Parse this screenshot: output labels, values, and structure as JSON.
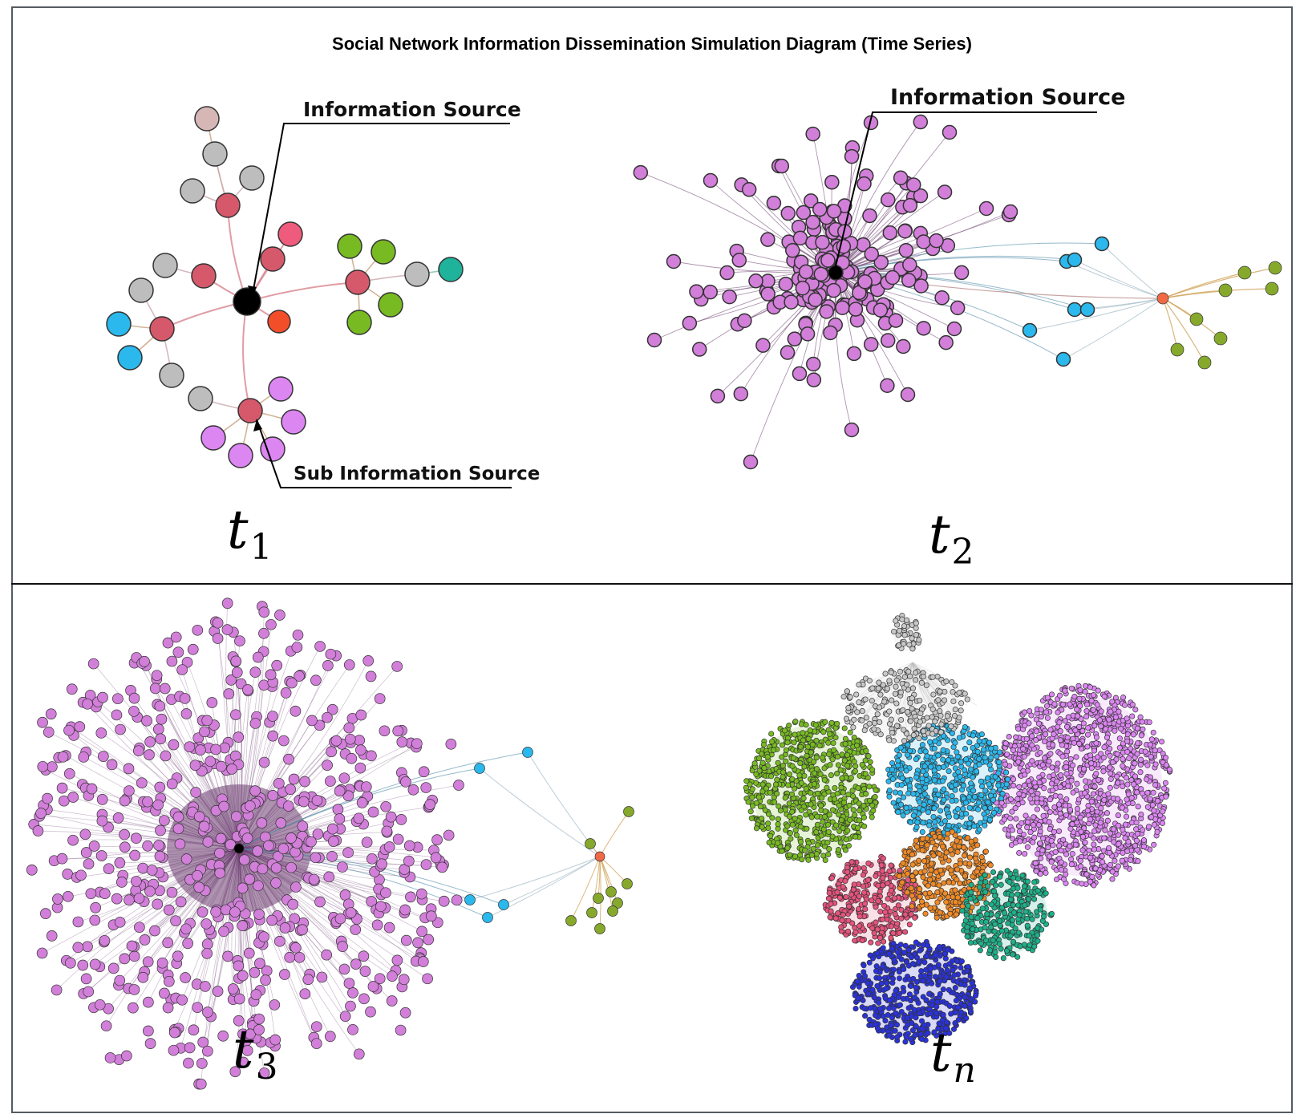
{
  "title": "Social Network Information Dissemination Simulation Diagram (Time Series)",
  "panels": [
    {
      "label_base": "t",
      "label_sub": "1"
    },
    {
      "label_base": "t",
      "label_sub": "2"
    },
    {
      "label_base": "t",
      "label_sub": "3"
    },
    {
      "label_base": "t",
      "label_sub": "n"
    }
  ],
  "callouts": {
    "info_source_t1": "Information Source",
    "sub_info_source_t1": "Sub Information Source",
    "info_source_t2": "Information Source"
  },
  "colors": {
    "source": "#000000",
    "sub_source": "#d6596b",
    "gray": "#bdbdbd",
    "pink": "#d6b7b5",
    "cyan": "#2bb8ec",
    "green": "#77ba22",
    "teal": "#1fb39c",
    "violet": "#dc86f2",
    "purple": "#d27fd9",
    "orange": "#ef8925",
    "red_orange": "#f24e2a",
    "rose": "#e6537c",
    "blue": "#2a32db",
    "emerald": "#1db089"
  }
}
